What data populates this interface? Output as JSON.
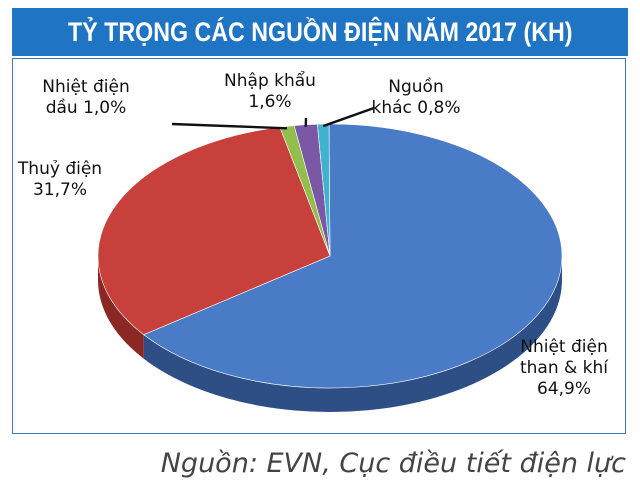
{
  "chart_data": {
    "type": "pie",
    "title": "TỶ TRỌNG CÁC NGUỒN ĐIỆN NĂM 2017 (KH)",
    "slices": [
      {
        "label_lines": [
          "Nhiệt điện",
          "than & khí",
          "64,9%"
        ],
        "value": 64.9,
        "color": "#4a7bc7",
        "side": "#2d4f85"
      },
      {
        "label_lines": [
          "Thuỷ điện",
          "31,7%"
        ],
        "value": 31.7,
        "color": "#c8403c",
        "side": "#8a2826"
      },
      {
        "label_lines": [
          "Nhiệt điện",
          "dầu  1,0%"
        ],
        "value": 1.0,
        "color": "#93bd4c",
        "side": "#5f7f2e"
      },
      {
        "label_lines": [
          "Nhập khẩu",
          "1,6%"
        ],
        "value": 1.6,
        "color": "#7b58a6",
        "side": "#4f3770"
      },
      {
        "label_lines": [
          "Nguồn",
          "khác  0,8%"
        ],
        "value": 0.8,
        "color": "#3fb2cf",
        "side": "#277488"
      }
    ]
  },
  "source_text": "Nguồn: EVN, Cục điều tiết điện lực"
}
